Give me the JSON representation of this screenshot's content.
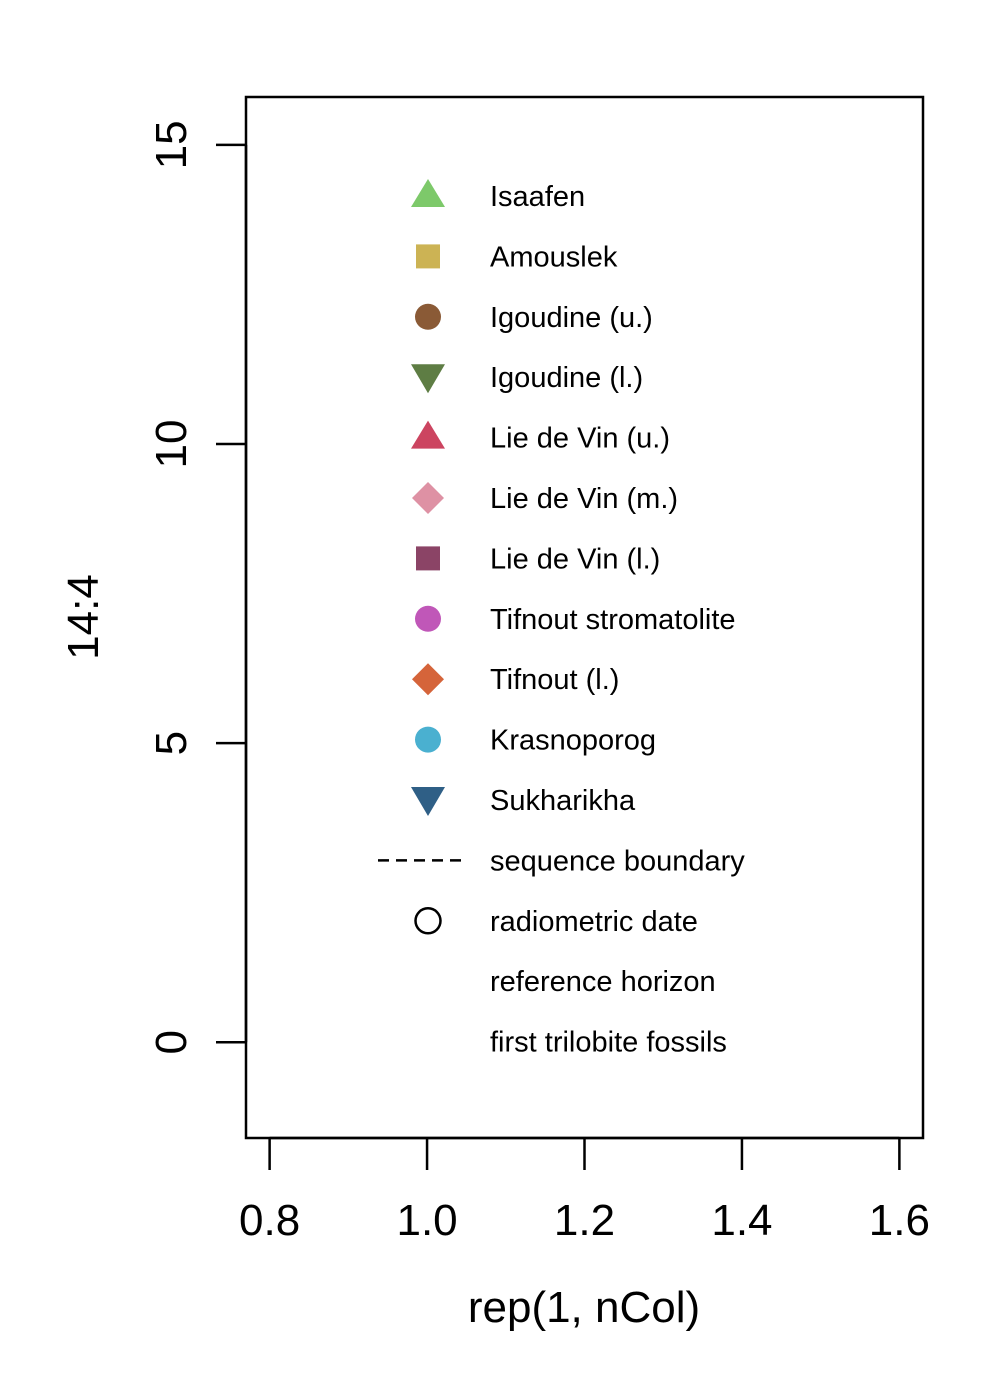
{
  "chart_data": {
    "type": "scatter",
    "title": "",
    "xlabel": "rep(1, nCol)",
    "ylabel": "14:4",
    "xlim": [
      0.77,
      1.63
    ],
    "ylim": [
      -1.6,
      15.8
    ],
    "x_ticks": [
      "0.8",
      "1.0",
      "1.2",
      "1.4",
      "1.6"
    ],
    "y_ticks": [
      "0",
      "5",
      "10",
      "15"
    ],
    "grid": false,
    "legend_position": "inside-plot",
    "legend": [
      {
        "label": "Isaafen",
        "symbol": "triangle-up",
        "color": "#7dc96a"
      },
      {
        "label": "Amouslek",
        "symbol": "square",
        "color": "#ccb354"
      },
      {
        "label": "Igoudine (u.)",
        "symbol": "circle",
        "color": "#8a5a36"
      },
      {
        "label": "Igoudine (l.)",
        "symbol": "triangle-down",
        "color": "#5e7d44"
      },
      {
        "label": "Lie de Vin (u.)",
        "symbol": "triangle-up",
        "color": "#cc4460"
      },
      {
        "label": "Lie de Vin (m.)",
        "symbol": "diamond",
        "color": "#de91a4"
      },
      {
        "label": "Lie de Vin (l.)",
        "symbol": "square",
        "color": "#8b4466"
      },
      {
        "label": "Tifnout stromatolite",
        "symbol": "circle",
        "color": "#c057b8"
      },
      {
        "label": "Tifnout (l.)",
        "symbol": "diamond",
        "color": "#d5643a"
      },
      {
        "label": "Krasnoporog",
        "symbol": "circle",
        "color": "#4ab0d0"
      },
      {
        "label": "Sukharikha",
        "symbol": "triangle-down",
        "color": "#2f5f86"
      },
      {
        "label": "sequence boundary",
        "symbol": "dashed-line",
        "color": "#000000"
      },
      {
        "label": "radiometric date",
        "symbol": "open-circle",
        "color": "#000000"
      },
      {
        "label": "reference horizon",
        "symbol": "none",
        "color": ""
      },
      {
        "label": "first trilobite fossils",
        "symbol": "none",
        "color": ""
      }
    ]
  }
}
